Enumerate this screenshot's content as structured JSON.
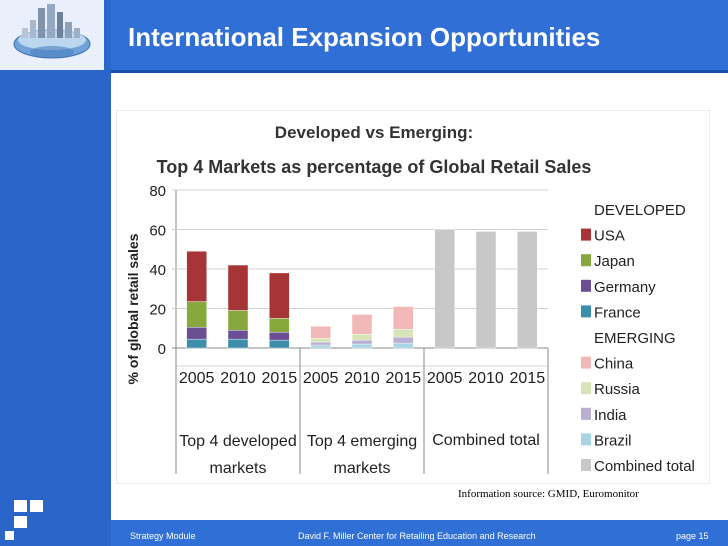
{
  "slide": {
    "title": "International Expansion Opportunities",
    "source": "Information source: GMID, Euromonitor",
    "footer_left": "Strategy Module",
    "footer_center": "David F. Miller Center for Retailing Education and Research",
    "footer_page": "page 15"
  },
  "colors": {
    "USA": "#a73437",
    "Japan": "#86a83d",
    "Germany": "#6a4f95",
    "France": "#3d8eab",
    "China": "#f2b8b8",
    "Russia": "#d7e4b8",
    "India": "#b9afd3",
    "Brazil": "#a9d4e3",
    "Combined total": "#c8c8c8"
  },
  "chart_data": {
    "type": "bar",
    "title": "Developed vs Emerging:",
    "subtitle": "Top 4 Markets as percentage of Global Retail Sales",
    "ylabel": "% of global retail sales",
    "ylim": [
      0,
      80
    ],
    "yticks": [
      "0",
      "20",
      "40",
      "60",
      "80"
    ],
    "groups": [
      {
        "label_line1": "Top 4 developed",
        "label_line2": "markets",
        "bars": [
          {
            "x": "2005",
            "segments": [
              {
                "name": "France",
                "value": 4.5
              },
              {
                "name": "Germany",
                "value": 6
              },
              {
                "name": "Japan",
                "value": 13
              },
              {
                "name": "USA",
                "value": 25.5
              }
            ]
          },
          {
            "x": "2010",
            "segments": [
              {
                "name": "France",
                "value": 4.5
              },
              {
                "name": "Germany",
                "value": 4.5
              },
              {
                "name": "Japan",
                "value": 10
              },
              {
                "name": "USA",
                "value": 23
              }
            ]
          },
          {
            "x": "2015",
            "segments": [
              {
                "name": "France",
                "value": 4
              },
              {
                "name": "Germany",
                "value": 4
              },
              {
                "name": "Japan",
                "value": 7
              },
              {
                "name": "USA",
                "value": 23
              }
            ]
          }
        ]
      },
      {
        "label_line1": "Top 4 emerging",
        "label_line2": "markets",
        "bars": [
          {
            "x": "2005",
            "segments": [
              {
                "name": "Brazil",
                "value": 1.5
              },
              {
                "name": "India",
                "value": 1.5
              },
              {
                "name": "Russia",
                "value": 2
              },
              {
                "name": "China",
                "value": 6
              }
            ]
          },
          {
            "x": "2010",
            "segments": [
              {
                "name": "Brazil",
                "value": 2
              },
              {
                "name": "India",
                "value": 2
              },
              {
                "name": "Russia",
                "value": 3
              },
              {
                "name": "China",
                "value": 10
              }
            ]
          },
          {
            "x": "2015",
            "segments": [
              {
                "name": "Brazil",
                "value": 2.5
              },
              {
                "name": "India",
                "value": 3
              },
              {
                "name": "Russia",
                "value": 4
              },
              {
                "name": "China",
                "value": 11.5
              }
            ]
          }
        ]
      },
      {
        "label_line1": "Combined total",
        "label_line2": "",
        "bars": [
          {
            "x": "2005",
            "segments": [
              {
                "name": "Combined total",
                "value": 60
              }
            ]
          },
          {
            "x": "2010",
            "segments": [
              {
                "name": "Combined total",
                "value": 59
              }
            ]
          },
          {
            "x": "2015",
            "segments": [
              {
                "name": "Combined total",
                "value": 59
              }
            ]
          }
        ]
      }
    ],
    "legend": [
      {
        "header": "DEVELOPED"
      },
      {
        "name": "USA"
      },
      {
        "name": "Japan"
      },
      {
        "name": "Germany"
      },
      {
        "name": "France"
      },
      {
        "header": "EMERGING"
      },
      {
        "name": "China"
      },
      {
        "name": "Russia"
      },
      {
        "name": "India"
      },
      {
        "name": "Brazil"
      },
      {
        "name": "Combined total"
      }
    ]
  }
}
